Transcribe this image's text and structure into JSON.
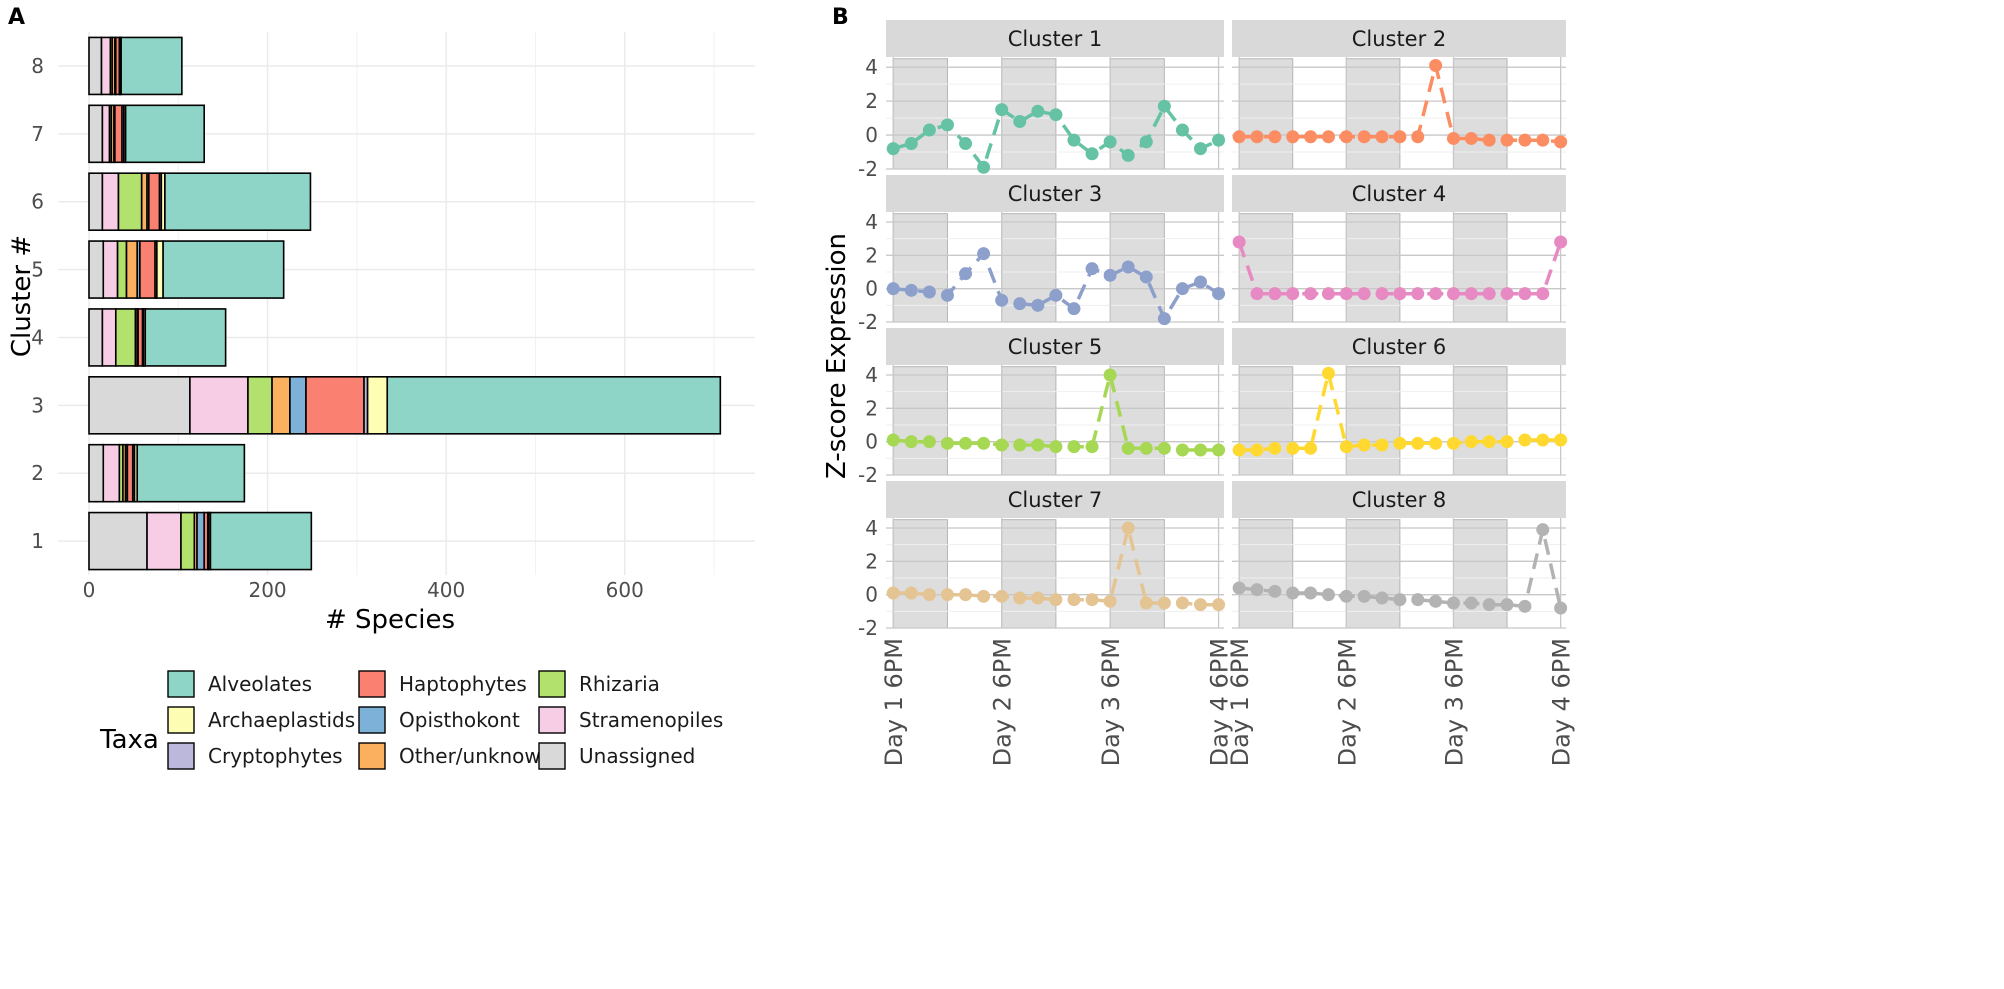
{
  "panels": {
    "a_label": "A",
    "b_label": "B"
  },
  "chart_data": [
    {
      "type": "bar",
      "orientation": "horizontal",
      "stacked": true,
      "xlabel": "# Species",
      "ylabel": "Cluster #",
      "xlim": [
        0,
        720
      ],
      "xticks": [
        0,
        200,
        400,
        600
      ],
      "categories": [
        "1",
        "2",
        "3",
        "4",
        "5",
        "6",
        "7",
        "8"
      ],
      "legend_title": "Taxa",
      "legend_position": "bottom",
      "series": [
        {
          "name": "Unassigned",
          "color": "#d9d9d9",
          "values": [
            65,
            16,
            113,
            15,
            16,
            15,
            15,
            14
          ]
        },
        {
          "name": "Stramenopiles",
          "color": "#f7cde5",
          "values": [
            38,
            18,
            65,
            15,
            16,
            18,
            8,
            10
          ]
        },
        {
          "name": "Rhizaria",
          "color": "#b3e16d",
          "values": [
            15,
            4,
            27,
            22,
            10,
            26,
            2,
            2
          ]
        },
        {
          "name": "Other/unknown",
          "color": "#fbb060",
          "values": [
            3,
            3,
            20,
            2,
            12,
            6,
            3,
            3
          ]
        },
        {
          "name": "Opisthokont",
          "color": "#7eb1d8",
          "values": [
            8,
            2,
            18,
            1,
            3,
            2,
            1,
            1
          ]
        },
        {
          "name": "Haptophytes",
          "color": "#fa8172",
          "values": [
            4,
            6,
            65,
            5,
            17,
            12,
            8,
            4
          ]
        },
        {
          "name": "Cryptophytes",
          "color": "#bcb8db",
          "values": [
            1,
            2,
            4,
            1,
            2,
            2,
            2,
            1
          ]
        },
        {
          "name": "Archaeplastids",
          "color": "#fefdb4",
          "values": [
            2,
            3,
            22,
            2,
            7,
            4,
            2,
            1
          ]
        },
        {
          "name": "Alveolates",
          "color": "#8ed4c7",
          "values": [
            113,
            120,
            373,
            90,
            135,
            163,
            88,
            68
          ]
        }
      ],
      "legend_order": [
        "Alveolates",
        "Archaeplastids",
        "Cryptophytes",
        "Haptophytes",
        "Opisthokont",
        "Other/unknown",
        "Rhizaria",
        "Stramenopiles",
        "Unassigned"
      ]
    },
    {
      "type": "line",
      "facets": true,
      "ylabel": "Z-score Expression",
      "ylim": [
        -2,
        4.6
      ],
      "yticks": [
        -2,
        0,
        2,
        4
      ],
      "x_tick_labels": [
        "Day 1 6PM",
        "Day 2 6PM",
        "Day 3 6PM",
        "Day 4 6PM"
      ],
      "x_tick_positions": [
        0,
        6,
        12,
        18
      ],
      "xlim": [
        -0.4,
        18.3
      ],
      "night_shading": [
        [
          0,
          3
        ],
        [
          6,
          9
        ],
        [
          12,
          15
        ]
      ],
      "x": [
        0,
        1,
        2,
        3,
        4,
        5,
        6,
        7,
        8,
        9,
        10,
        11,
        12,
        13,
        14,
        15,
        16,
        17,
        18
      ],
      "panel2_point_count": 19,
      "clusters": [
        {
          "name": "Cluster 1",
          "color": "#66c2a5",
          "values": [
            -0.8,
            -0.5,
            0.3,
            0.6,
            -0.5,
            -1.9,
            1.5,
            0.8,
            1.4,
            1.2,
            -0.3,
            -1.1,
            -0.4,
            -1.2,
            -0.4,
            1.7,
            0.3,
            -0.8,
            -0.3
          ]
        },
        {
          "name": "Cluster 2",
          "color": "#fc8d62",
          "values": [
            -0.1,
            -0.1,
            -0.1,
            -0.1,
            -0.1,
            -0.1,
            -0.1,
            -0.1,
            -0.1,
            -0.1,
            -0.1,
            4.1,
            -0.2,
            -0.2,
            -0.3,
            -0.3,
            -0.3,
            -0.3,
            -0.4
          ]
        },
        {
          "name": "Cluster 3",
          "color": "#8da0cb",
          "values": [
            0.0,
            -0.1,
            -0.2,
            -0.4,
            0.9,
            2.1,
            -0.7,
            -0.9,
            -1.0,
            -0.4,
            -1.2,
            1.2,
            0.8,
            1.3,
            0.7,
            -1.8,
            0.0,
            0.4,
            -0.3
          ]
        },
        {
          "name": "Cluster 4",
          "color": "#e78ac3",
          "values": [
            2.8,
            -0.3,
            -0.3,
            -0.3,
            -0.3,
            -0.3,
            -0.3,
            -0.3,
            -0.3,
            -0.3,
            -0.3,
            -0.3,
            -0.3,
            -0.3,
            -0.3,
            -0.3,
            -0.3,
            -0.3,
            2.8
          ]
        },
        {
          "name": "Cluster 5",
          "color": "#a6d854",
          "values": [
            0.1,
            0.0,
            0.0,
            -0.1,
            -0.1,
            -0.1,
            -0.2,
            -0.2,
            -0.2,
            -0.3,
            -0.3,
            -0.3,
            4.0,
            -0.4,
            -0.4,
            -0.4,
            -0.5,
            -0.5,
            -0.5
          ]
        },
        {
          "name": "Cluster 6",
          "color": "#ffd92f",
          "values": [
            -0.5,
            -0.5,
            -0.4,
            -0.4,
            -0.4,
            4.1,
            -0.3,
            -0.2,
            -0.2,
            -0.1,
            -0.1,
            -0.1,
            -0.1,
            0.0,
            0.0,
            0.0,
            0.1,
            0.1,
            0.1
          ]
        },
        {
          "name": "Cluster 7",
          "color": "#e5c494",
          "values": [
            0.1,
            0.1,
            0.0,
            0.0,
            0.0,
            -0.1,
            -0.1,
            -0.2,
            -0.2,
            -0.3,
            -0.3,
            -0.3,
            -0.4,
            4.0,
            -0.5,
            -0.5,
            -0.5,
            -0.6,
            -0.6
          ]
        },
        {
          "name": "Cluster 8",
          "color": "#b3b3b3",
          "values": [
            0.4,
            0.3,
            0.2,
            0.1,
            0.1,
            0.0,
            -0.1,
            -0.1,
            -0.2,
            -0.3,
            -0.3,
            -0.4,
            -0.5,
            -0.5,
            -0.6,
            -0.6,
            -0.7,
            3.9,
            -0.8
          ]
        }
      ]
    }
  ]
}
